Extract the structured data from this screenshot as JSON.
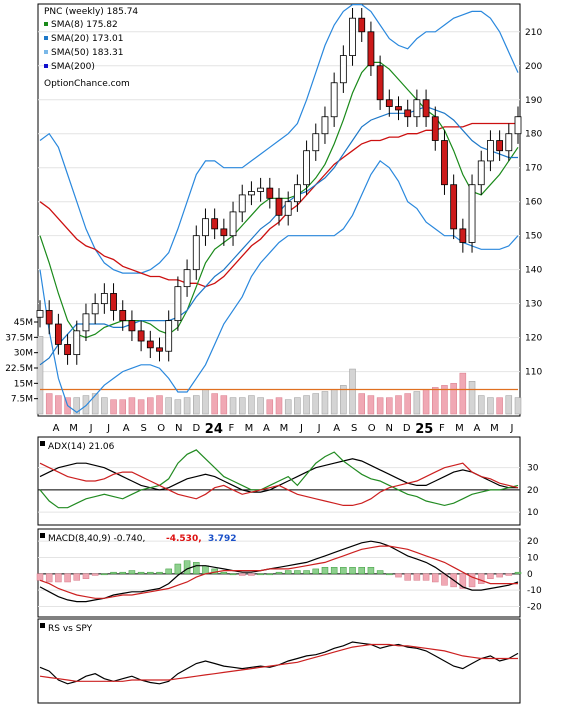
{
  "chart_data": {
    "type": "line",
    "main": {
      "title": "PNC (weekly) 185.74",
      "legend": [
        {
          "label": "SMA(8) 175.82",
          "color": "#1a8a1a"
        },
        {
          "label": "SMA(20) 173.01",
          "color": "#1e78c8"
        },
        {
          "label": "SMA(50) 183.31",
          "color": "#7ab8e8"
        },
        {
          "label": "SMA(200)",
          "color": "#1010cc"
        }
      ],
      "watermark": "OptionChance.com",
      "price_ticks": [
        210,
        200,
        190,
        180,
        170,
        160,
        150,
        140,
        130,
        120,
        110
      ],
      "volume_ticks": [
        "45M",
        "37.5M",
        "30M",
        "22.5M",
        "15M",
        "7.5M"
      ],
      "ylim": [
        104,
        217
      ],
      "x_labels": [
        "A",
        "M",
        "J",
        "J",
        "A",
        "S",
        "O",
        "N",
        "D",
        "24",
        "F",
        "M",
        "A",
        "M",
        "J",
        "J",
        "A",
        "S",
        "O",
        "N",
        "D",
        "25",
        "F",
        "M",
        "A",
        "M",
        "J"
      ],
      "price_series": [
        {
          "name": "price",
          "values": [
            128,
            124,
            118,
            115,
            122,
            127,
            130,
            133,
            128,
            125,
            122,
            119,
            117,
            116,
            125,
            135,
            140,
            150,
            155,
            152,
            150,
            157,
            162,
            163,
            164,
            161,
            156,
            160,
            165,
            175,
            180,
            185,
            195,
            203,
            214,
            210,
            200,
            190,
            188,
            187,
            185,
            190,
            185,
            178,
            165,
            152,
            148,
            165,
            172,
            178,
            175,
            180,
            185
          ]
        },
        {
          "name": "SMA(8)",
          "values": [
            150,
            142,
            133,
            125,
            121,
            120,
            121,
            123,
            124,
            125,
            125,
            125,
            124,
            122,
            121,
            123,
            128,
            135,
            142,
            146,
            148,
            150,
            153,
            156,
            159,
            161,
            161,
            161,
            162,
            164,
            167,
            171,
            177,
            184,
            192,
            198,
            201,
            201,
            199,
            196,
            193,
            190,
            187,
            185,
            181,
            175,
            168,
            163,
            162,
            165,
            168,
            172,
            176
          ]
        },
        {
          "name": "SMA(20)",
          "values": [
            112,
            114,
            118,
            121,
            124,
            124,
            124,
            124,
            123,
            123,
            124,
            125,
            125,
            125,
            125,
            126,
            128,
            132,
            135,
            138,
            140,
            143,
            146,
            149,
            152,
            154,
            157,
            160,
            162,
            163,
            165,
            167,
            170,
            174,
            178,
            182,
            184,
            185,
            186,
            186,
            186,
            187,
            188,
            187,
            186,
            184,
            181,
            178,
            176,
            175,
            174,
            173,
            173
          ]
        },
        {
          "name": "SMA(50)",
          "values": [
            160,
            158,
            155,
            152,
            149,
            147,
            146,
            144,
            143,
            141,
            140,
            139,
            138,
            138,
            137,
            137,
            136,
            136,
            135,
            136,
            138,
            141,
            144,
            147,
            149,
            152,
            154,
            157,
            159,
            162,
            165,
            168,
            171,
            173,
            175,
            177,
            178,
            178,
            179,
            179,
            180,
            180,
            181,
            181,
            182,
            182,
            182,
            183,
            183,
            183,
            183,
            183,
            183
          ]
        },
        {
          "name": "Bollinger upper",
          "values": [
            178,
            180,
            176,
            168,
            160,
            152,
            146,
            142,
            140,
            139,
            139,
            139,
            140,
            142,
            145,
            152,
            160,
            168,
            172,
            172,
            170,
            170,
            170,
            172,
            174,
            176,
            178,
            180,
            183,
            190,
            198,
            206,
            212,
            216,
            218,
            218,
            216,
            212,
            208,
            206,
            205,
            208,
            210,
            210,
            212,
            214,
            215,
            216,
            216,
            214,
            210,
            204,
            198
          ]
        },
        {
          "name": "Bollinger lower",
          "values": [
            140,
            122,
            108,
            100,
            98,
            100,
            103,
            106,
            108,
            110,
            111,
            112,
            112,
            111,
            108,
            104,
            104,
            108,
            112,
            118,
            124,
            128,
            132,
            138,
            142,
            145,
            148,
            150,
            150,
            150,
            150,
            150,
            150,
            152,
            156,
            162,
            168,
            172,
            170,
            166,
            160,
            158,
            154,
            152,
            150,
            150,
            148,
            147,
            146,
            146,
            146,
            147,
            150
          ]
        }
      ],
      "volume_values": [
        11,
        10,
        9,
        8,
        8,
        9,
        10,
        8,
        7,
        7,
        8,
        7,
        8,
        9,
        8,
        7,
        8,
        9,
        12,
        10,
        9,
        8,
        8,
        9,
        8,
        7,
        8,
        7,
        8,
        9,
        10,
        11,
        12,
        14,
        12,
        10,
        9,
        8,
        8,
        9,
        10,
        11,
        12,
        13,
        14,
        15,
        12,
        10,
        9,
        8,
        8,
        9,
        8
      ],
      "volume_spikes": [
        38,
        22,
        20,
        16
      ],
      "volume_avg": 12
    },
    "adx": {
      "title": "ADX(14) 21.06",
      "ticks": [
        30,
        20,
        10
      ],
      "ylim": [
        6,
        42
      ],
      "series": [
        {
          "name": "ADX",
          "color": "#000000",
          "values": [
            26,
            28,
            30,
            31,
            32,
            32,
            31,
            30,
            28,
            26,
            24,
            22,
            21,
            20,
            21,
            23,
            25,
            26,
            27,
            26,
            24,
            22,
            20,
            19,
            19,
            20,
            22,
            24,
            26,
            28,
            30,
            31,
            32,
            33,
            34,
            33,
            31,
            29,
            27,
            25,
            23,
            22,
            22,
            24,
            26,
            28,
            29,
            28,
            26,
            24,
            22,
            21,
            21
          ]
        },
        {
          "name": "+DI",
          "color": "#228b22",
          "values": [
            20,
            15,
            12,
            12,
            14,
            16,
            17,
            18,
            17,
            16,
            18,
            20,
            21,
            22,
            25,
            32,
            36,
            38,
            34,
            30,
            26,
            24,
            22,
            20,
            20,
            22,
            24,
            26,
            22,
            27,
            32,
            35,
            37,
            33,
            30,
            27,
            25,
            24,
            22,
            20,
            18,
            17,
            15,
            14,
            13,
            14,
            16,
            18,
            19,
            20,
            20,
            21,
            22
          ]
        },
        {
          "name": "-DI",
          "color": "#cc2020",
          "values": [
            32,
            30,
            28,
            26,
            25,
            24,
            24,
            25,
            27,
            28,
            28,
            26,
            24,
            22,
            20,
            18,
            17,
            16,
            18,
            21,
            22,
            20,
            18,
            19,
            20,
            21,
            22,
            20,
            18,
            17,
            16,
            15,
            14,
            13,
            13,
            14,
            16,
            19,
            21,
            22,
            23,
            24,
            26,
            28,
            30,
            31,
            32,
            28,
            26,
            25,
            23,
            22,
            21
          ]
        }
      ]
    },
    "macd": {
      "title": "MACD(8,40,9) -0.740,",
      "signal_value": "-4.530,",
      "hist_value": "3.792",
      "ticks": [
        20,
        10,
        0,
        -10,
        -20
      ],
      "ylim": [
        -24,
        25
      ],
      "series": [
        {
          "name": "MACD",
          "color": "#000000",
          "values": [
            -8,
            -11,
            -14,
            -16,
            -17,
            -17,
            -16,
            -15,
            -13,
            -12,
            -11,
            -11,
            -10,
            -9,
            -6,
            -1,
            3,
            5,
            5,
            4,
            3,
            2,
            1,
            1,
            2,
            3,
            4,
            5,
            6,
            7,
            9,
            11,
            13,
            15,
            17,
            19,
            20,
            19,
            17,
            14,
            11,
            9,
            7,
            4,
            0,
            -4,
            -8,
            -10,
            -10,
            -9,
            -8,
            -7,
            -5
          ]
        },
        {
          "name": "Signal",
          "color": "#cc2020",
          "values": [
            -4,
            -6,
            -9,
            -11,
            -13,
            -14,
            -15,
            -15,
            -14,
            -13,
            -13,
            -12,
            -11,
            -10,
            -9,
            -7,
            -5,
            -2,
            0,
            1,
            2,
            2,
            2,
            2,
            2,
            3,
            3,
            3,
            4,
            5,
            6,
            7,
            9,
            11,
            13,
            15,
            16,
            17,
            17,
            16,
            15,
            13,
            11,
            9,
            7,
            4,
            1,
            -2,
            -4,
            -6,
            -6,
            -6,
            -6
          ]
        },
        {
          "name": "Histogram",
          "color": "#3a9a3a",
          "values": [
            -4,
            -5,
            -5,
            -5,
            -4,
            -3,
            -1,
            0,
            1,
            1,
            2,
            1,
            1,
            1,
            3,
            6,
            8,
            7,
            5,
            3,
            1,
            0,
            -1,
            -1,
            0,
            0,
            1,
            2,
            2,
            2,
            3,
            4,
            4,
            4,
            4,
            4,
            4,
            2,
            0,
            -2,
            -4,
            -4,
            -4,
            -5,
            -7,
            -8,
            -9,
            -8,
            -6,
            -3,
            -2,
            -1,
            1
          ]
        }
      ]
    },
    "rs": {
      "title": "RS vs SPY",
      "series": [
        {
          "name": "RS",
          "color": "#000000",
          "values": [
            55,
            52,
            45,
            42,
            44,
            48,
            50,
            46,
            44,
            46,
            48,
            45,
            43,
            42,
            44,
            50,
            54,
            58,
            60,
            58,
            56,
            55,
            54,
            55,
            56,
            55,
            57,
            60,
            62,
            64,
            65,
            67,
            70,
            72,
            75,
            74,
            73,
            70,
            72,
            73,
            71,
            70,
            68,
            64,
            60,
            56,
            54,
            58,
            62,
            64,
            60,
            62,
            66
          ]
        },
        {
          "name": "RS average",
          "color": "#cc2020",
          "values": [
            48,
            47,
            46,
            45,
            44,
            44,
            44,
            44,
            44,
            44,
            45,
            45,
            45,
            45,
            45,
            46,
            47,
            48,
            49,
            50,
            51,
            52,
            53,
            54,
            55,
            56,
            57,
            58,
            59,
            61,
            63,
            65,
            67,
            69,
            71,
            72,
            73,
            73,
            73,
            72,
            72,
            71,
            70,
            69,
            68,
            66,
            64,
            63,
            62,
            62,
            62,
            62,
            62
          ]
        }
      ]
    }
  }
}
